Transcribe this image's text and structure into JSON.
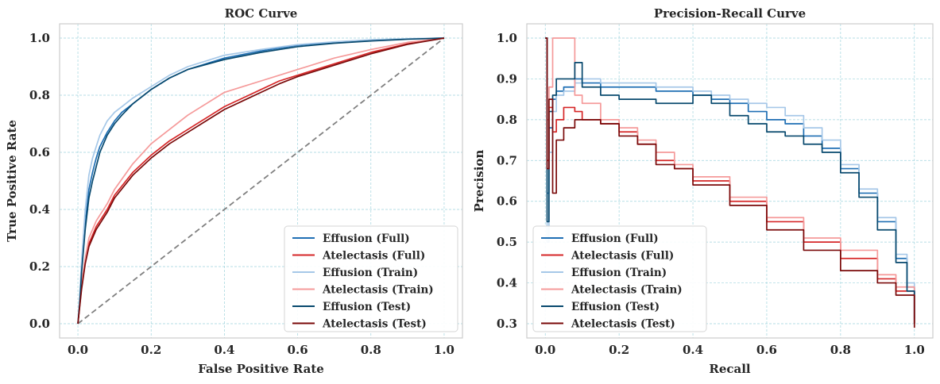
{
  "chart_data": [
    {
      "type": "line",
      "title": "ROC Curve",
      "xlabel": "False Positive Rate",
      "ylabel": "True Positive Rate",
      "xlim": [
        -0.05,
        1.05
      ],
      "ylim": [
        -0.05,
        1.05
      ],
      "xticks": [
        "0.0",
        "0.2",
        "0.4",
        "0.6",
        "0.8",
        "1.0"
      ],
      "yticks": [
        "0.0",
        "0.2",
        "0.4",
        "0.6",
        "0.8",
        "1.0"
      ],
      "grid": true,
      "legend_position": "bottom-right",
      "diagonal_reference": {
        "x": [
          0,
          1
        ],
        "y": [
          0,
          1
        ],
        "color": "#808080",
        "style": "dashed"
      },
      "series": [
        {
          "name": "Effusion (Full)",
          "color": "#1f6fb4",
          "x": [
            0,
            0.005,
            0.01,
            0.02,
            0.03,
            0.04,
            0.05,
            0.06,
            0.08,
            0.1,
            0.12,
            0.15,
            0.2,
            0.25,
            0.3,
            0.4,
            0.5,
            0.6,
            0.7,
            0.8,
            0.9,
            1.0
          ],
          "y": [
            0,
            0.08,
            0.2,
            0.35,
            0.47,
            0.53,
            0.58,
            0.62,
            0.67,
            0.71,
            0.74,
            0.77,
            0.82,
            0.86,
            0.89,
            0.93,
            0.955,
            0.975,
            0.985,
            0.992,
            0.997,
            1.0
          ]
        },
        {
          "name": "Atelectasis (Full)",
          "color": "#d62728",
          "x": [
            0,
            0.01,
            0.02,
            0.03,
            0.05,
            0.08,
            0.1,
            0.15,
            0.2,
            0.25,
            0.3,
            0.35,
            0.4,
            0.45,
            0.5,
            0.55,
            0.6,
            0.7,
            0.8,
            0.9,
            1.0
          ],
          "y": [
            0,
            0.13,
            0.22,
            0.28,
            0.34,
            0.4,
            0.45,
            0.53,
            0.59,
            0.64,
            0.68,
            0.72,
            0.76,
            0.79,
            0.82,
            0.85,
            0.87,
            0.91,
            0.95,
            0.98,
            1.0
          ]
        },
        {
          "name": "Effusion (Train)",
          "color": "#a6c8e8",
          "x": [
            0,
            0.005,
            0.01,
            0.02,
            0.03,
            0.04,
            0.05,
            0.06,
            0.08,
            0.1,
            0.12,
            0.15,
            0.2,
            0.25,
            0.3,
            0.4,
            0.5,
            0.6,
            0.7,
            0.8,
            0.9,
            1.0
          ],
          "y": [
            0,
            0.1,
            0.22,
            0.4,
            0.52,
            0.58,
            0.62,
            0.66,
            0.71,
            0.74,
            0.76,
            0.79,
            0.83,
            0.87,
            0.9,
            0.94,
            0.96,
            0.977,
            0.987,
            0.994,
            0.998,
            1.0
          ]
        },
        {
          "name": "Atelectasis (Train)",
          "color": "#f59a9a",
          "x": [
            0,
            0.01,
            0.02,
            0.03,
            0.05,
            0.08,
            0.1,
            0.15,
            0.2,
            0.25,
            0.3,
            0.35,
            0.4,
            0.45,
            0.5,
            0.55,
            0.6,
            0.7,
            0.8,
            0.9,
            1.0
          ],
          "y": [
            0,
            0.14,
            0.23,
            0.3,
            0.36,
            0.42,
            0.47,
            0.56,
            0.63,
            0.68,
            0.73,
            0.77,
            0.81,
            0.83,
            0.85,
            0.87,
            0.89,
            0.93,
            0.96,
            0.985,
            1.0
          ]
        },
        {
          "name": "Effusion (Test)",
          "color": "#08496e",
          "x": [
            0,
            0.005,
            0.01,
            0.02,
            0.03,
            0.04,
            0.05,
            0.06,
            0.08,
            0.1,
            0.12,
            0.15,
            0.2,
            0.25,
            0.3,
            0.4,
            0.5,
            0.6,
            0.7,
            0.8,
            0.9,
            1.0
          ],
          "y": [
            0,
            0.07,
            0.18,
            0.33,
            0.44,
            0.5,
            0.55,
            0.6,
            0.66,
            0.7,
            0.73,
            0.77,
            0.82,
            0.86,
            0.89,
            0.925,
            0.95,
            0.97,
            0.982,
            0.99,
            0.996,
            1.0
          ]
        },
        {
          "name": "Atelectasis (Test)",
          "color": "#7a0a0a",
          "x": [
            0,
            0.01,
            0.02,
            0.03,
            0.05,
            0.08,
            0.1,
            0.15,
            0.2,
            0.25,
            0.3,
            0.35,
            0.4,
            0.45,
            0.5,
            0.55,
            0.6,
            0.7,
            0.8,
            0.9,
            1.0
          ],
          "y": [
            0,
            0.12,
            0.21,
            0.27,
            0.33,
            0.39,
            0.44,
            0.52,
            0.58,
            0.63,
            0.67,
            0.71,
            0.75,
            0.78,
            0.81,
            0.84,
            0.865,
            0.905,
            0.945,
            0.978,
            1.0
          ]
        }
      ]
    },
    {
      "type": "line",
      "title": "Precision-Recall Curve",
      "xlabel": "Recall",
      "ylabel": "Precision",
      "xlim": [
        -0.05,
        1.05
      ],
      "ylim": [
        0.265,
        1.035
      ],
      "xticks": [
        "0.0",
        "0.2",
        "0.4",
        "0.6",
        "0.8",
        "1.0"
      ],
      "yticks": [
        "0.3",
        "0.4",
        "0.5",
        "0.6",
        "0.7",
        "0.8",
        "0.9",
        "1.0"
      ],
      "grid": true,
      "legend_position": "bottom-left",
      "series": [
        {
          "name": "Effusion (Full)",
          "color": "#1f6fb4",
          "x": [
            0,
            0.005,
            0.01,
            0.02,
            0.03,
            0.05,
            0.08,
            0.1,
            0.15,
            0.2,
            0.3,
            0.4,
            0.45,
            0.5,
            0.55,
            0.6,
            0.65,
            0.7,
            0.75,
            0.8,
            0.85,
            0.9,
            0.95,
            0.98,
            1.0
          ],
          "y": [
            1.0,
            0.62,
            0.78,
            0.85,
            0.87,
            0.88,
            0.9,
            0.89,
            0.88,
            0.88,
            0.87,
            0.86,
            0.85,
            0.84,
            0.82,
            0.8,
            0.79,
            0.76,
            0.73,
            0.68,
            0.62,
            0.55,
            0.46,
            0.39,
            0.31
          ]
        },
        {
          "name": "Atelectasis (Full)",
          "color": "#d62728",
          "x": [
            0,
            0.005,
            0.01,
            0.02,
            0.03,
            0.05,
            0.08,
            0.1,
            0.15,
            0.2,
            0.25,
            0.3,
            0.35,
            0.4,
            0.5,
            0.6,
            0.7,
            0.8,
            0.9,
            0.95,
            1.0
          ],
          "y": [
            1.0,
            0.7,
            0.83,
            0.77,
            0.8,
            0.83,
            0.82,
            0.8,
            0.79,
            0.77,
            0.74,
            0.7,
            0.68,
            0.65,
            0.6,
            0.55,
            0.5,
            0.46,
            0.41,
            0.38,
            0.3
          ]
        },
        {
          "name": "Effusion (Train)",
          "color": "#a6c8e8",
          "x": [
            0,
            0.005,
            0.01,
            0.02,
            0.03,
            0.05,
            0.08,
            0.1,
            0.15,
            0.2,
            0.3,
            0.4,
            0.45,
            0.5,
            0.55,
            0.6,
            0.65,
            0.7,
            0.75,
            0.8,
            0.85,
            0.9,
            0.95,
            0.98,
            1.0
          ],
          "y": [
            1.0,
            0.5,
            0.72,
            0.82,
            0.86,
            0.87,
            0.89,
            0.9,
            0.89,
            0.89,
            0.88,
            0.87,
            0.86,
            0.85,
            0.84,
            0.83,
            0.81,
            0.78,
            0.75,
            0.69,
            0.63,
            0.56,
            0.47,
            0.4,
            0.32
          ]
        },
        {
          "name": "Atelectasis (Train)",
          "color": "#f59a9a",
          "x": [
            0,
            0.005,
            0.01,
            0.02,
            0.03,
            0.05,
            0.08,
            0.1,
            0.15,
            0.2,
            0.25,
            0.3,
            0.35,
            0.4,
            0.5,
            0.6,
            0.7,
            0.8,
            0.9,
            0.95,
            1.0
          ],
          "y": [
            1.0,
            0.8,
            0.88,
            1.0,
            1.0,
            1.0,
            0.86,
            0.84,
            0.8,
            0.78,
            0.75,
            0.72,
            0.69,
            0.66,
            0.61,
            0.56,
            0.51,
            0.48,
            0.42,
            0.39,
            0.3
          ]
        },
        {
          "name": "Effusion (Test)",
          "color": "#08496e",
          "x": [
            0,
            0.005,
            0.01,
            0.02,
            0.03,
            0.05,
            0.08,
            0.1,
            0.15,
            0.2,
            0.3,
            0.4,
            0.45,
            0.5,
            0.55,
            0.6,
            0.65,
            0.7,
            0.75,
            0.8,
            0.85,
            0.9,
            0.95,
            0.98,
            1.0
          ],
          "y": [
            1.0,
            0.55,
            0.82,
            0.86,
            0.9,
            0.9,
            0.94,
            0.88,
            0.86,
            0.85,
            0.84,
            0.86,
            0.84,
            0.81,
            0.79,
            0.77,
            0.76,
            0.74,
            0.72,
            0.67,
            0.61,
            0.53,
            0.45,
            0.38,
            0.3
          ]
        },
        {
          "name": "Atelectasis (Test)",
          "color": "#7a0a0a",
          "x": [
            0,
            0.005,
            0.01,
            0.02,
            0.03,
            0.05,
            0.08,
            0.1,
            0.15,
            0.2,
            0.25,
            0.3,
            0.35,
            0.4,
            0.5,
            0.6,
            0.7,
            0.8,
            0.9,
            0.95,
            1.0
          ],
          "y": [
            1.0,
            0.68,
            0.85,
            0.62,
            0.75,
            0.78,
            0.8,
            0.8,
            0.79,
            0.76,
            0.74,
            0.69,
            0.68,
            0.64,
            0.59,
            0.53,
            0.48,
            0.43,
            0.4,
            0.37,
            0.29
          ]
        }
      ]
    }
  ]
}
